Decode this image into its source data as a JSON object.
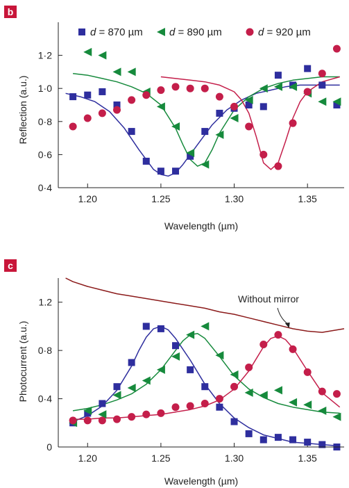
{
  "colors": {
    "d870": "#2e2e9e",
    "d890": "#168a3c",
    "d920": "#c41e4a",
    "no_mirror": "#8b1a1a",
    "panel_badge": "#c8163a"
  },
  "chart_data": [
    {
      "panel": "b",
      "type": "scatter",
      "xlabel": "Wavelength (µm)",
      "ylabel": "Reflection (a.u.)",
      "xlim": [
        1.18,
        1.375
      ],
      "ylim": [
        0.4,
        1.4
      ],
      "x_ticks": [
        1.2,
        1.25,
        1.3,
        1.35
      ],
      "x_tick_labels": [
        "1.20",
        "1.25",
        "1.30",
        "1.35"
      ],
      "y_ticks": [
        0.4,
        0.6,
        0.8,
        1.0,
        1.2
      ],
      "y_tick_labels": [
        "0·4",
        "0·6",
        "0·8",
        "1·0",
        "1·2"
      ],
      "legend_position": "top",
      "series": [
        {
          "name_prefix": "d",
          "name_value": " = 870 µm",
          "color_key": "d870",
          "marker": "square",
          "x": [
            1.19,
            1.2,
            1.21,
            1.22,
            1.23,
            1.24,
            1.25,
            1.26,
            1.27,
            1.28,
            1.29,
            1.3,
            1.31,
            1.32,
            1.33,
            1.34,
            1.35,
            1.36,
            1.37
          ],
          "y": [
            0.95,
            0.96,
            0.98,
            0.9,
            0.74,
            0.56,
            0.5,
            0.5,
            0.59,
            0.74,
            0.85,
            0.88,
            0.9,
            0.89,
            1.08,
            1.02,
            1.12,
            1.02,
            0.9
          ],
          "fit_x": [
            1.185,
            1.195,
            1.205,
            1.215,
            1.225,
            1.235,
            1.245,
            1.25,
            1.255,
            1.26,
            1.265,
            1.275,
            1.285,
            1.295,
            1.305,
            1.315,
            1.325,
            1.335,
            1.345,
            1.355,
            1.365,
            1.372
          ],
          "fit_y": [
            0.97,
            0.95,
            0.92,
            0.86,
            0.76,
            0.63,
            0.51,
            0.48,
            0.47,
            0.49,
            0.54,
            0.66,
            0.78,
            0.87,
            0.93,
            0.97,
            0.99,
            1.01,
            1.02,
            1.02,
            1.02,
            1.02
          ]
        },
        {
          "name_prefix": "d",
          "name_value": " = 890 µm",
          "color_key": "d890",
          "marker": "triangle-left",
          "x": [
            1.2,
            1.21,
            1.22,
            1.23,
            1.24,
            1.25,
            1.26,
            1.27,
            1.28,
            1.29,
            1.3,
            1.31,
            1.32,
            1.33,
            1.34,
            1.35,
            1.36,
            1.37
          ],
          "y": [
            1.22,
            1.2,
            1.1,
            1.1,
            0.98,
            0.89,
            0.77,
            0.61,
            0.54,
            0.72,
            0.82,
            0.93,
            1.0,
            1.01,
            1.01,
            0.97,
            0.92,
            0.92
          ],
          "fit_x": [
            1.19,
            1.2,
            1.21,
            1.22,
            1.23,
            1.24,
            1.25,
            1.26,
            1.265,
            1.27,
            1.275,
            1.28,
            1.285,
            1.29,
            1.3,
            1.31,
            1.32,
            1.33,
            1.34,
            1.35,
            1.36,
            1.372
          ],
          "fit_y": [
            1.09,
            1.08,
            1.06,
            1.04,
            1.01,
            0.97,
            0.9,
            0.76,
            0.66,
            0.57,
            0.53,
            0.55,
            0.63,
            0.73,
            0.87,
            0.95,
            1.0,
            1.03,
            1.05,
            1.06,
            1.07,
            1.07
          ]
        },
        {
          "name_prefix": "d",
          "name_value": " = 920 µm",
          "color_key": "d920",
          "marker": "circle",
          "x": [
            1.19,
            1.2,
            1.21,
            1.22,
            1.23,
            1.24,
            1.25,
            1.26,
            1.27,
            1.28,
            1.29,
            1.3,
            1.31,
            1.32,
            1.33,
            1.34,
            1.35,
            1.36,
            1.37
          ],
          "y": [
            0.77,
            0.82,
            0.85,
            0.87,
            0.93,
            0.96,
            0.99,
            1.01,
            1.0,
            1.0,
            0.95,
            0.89,
            0.77,
            0.6,
            0.53,
            0.79,
            0.98,
            1.09,
            1.24
          ],
          "fit_x": [
            1.25,
            1.26,
            1.27,
            1.28,
            1.29,
            1.3,
            1.305,
            1.31,
            1.315,
            1.32,
            1.325,
            1.33,
            1.335,
            1.34,
            1.345,
            1.35,
            1.36,
            1.372
          ],
          "fit_y": [
            1.07,
            1.06,
            1.05,
            1.04,
            1.02,
            0.98,
            0.93,
            0.85,
            0.71,
            0.55,
            0.51,
            0.55,
            0.68,
            0.82,
            0.92,
            0.98,
            1.04,
            1.07
          ]
        }
      ]
    },
    {
      "panel": "c",
      "type": "scatter",
      "xlabel": "Wavelength (µm)",
      "ylabel": "Photocurrent (a.u.)",
      "xlim": [
        1.18,
        1.375
      ],
      "ylim": [
        0,
        1.4
      ],
      "x_ticks": [
        1.2,
        1.25,
        1.3,
        1.35
      ],
      "x_tick_labels": [
        "1.20",
        "1.25",
        "1.30",
        "1.35"
      ],
      "y_ticks": [
        0,
        0.4,
        0.8,
        1.2
      ],
      "y_tick_labels": [
        "0",
        "0·4",
        "0·8",
        "1.2"
      ],
      "annotation": {
        "text": "Without mirror",
        "arrow_to": [
          1.337,
          0.98
        ]
      },
      "series": [
        {
          "color_key": "d870",
          "marker": "square",
          "x": [
            1.19,
            1.2,
            1.21,
            1.22,
            1.23,
            1.24,
            1.25,
            1.26,
            1.27,
            1.28,
            1.29,
            1.3,
            1.31,
            1.32,
            1.33,
            1.34,
            1.35,
            1.36,
            1.37
          ],
          "y": [
            0.2,
            0.28,
            0.36,
            0.5,
            0.7,
            1.0,
            0.98,
            0.84,
            0.64,
            0.5,
            0.33,
            0.21,
            0.11,
            0.06,
            0.08,
            0.06,
            0.04,
            0.02,
            0.0
          ],
          "fit_x": [
            1.19,
            1.2,
            1.21,
            1.22,
            1.23,
            1.235,
            1.24,
            1.245,
            1.25,
            1.255,
            1.26,
            1.27,
            1.28,
            1.29,
            1.3,
            1.31,
            1.32,
            1.33,
            1.34,
            1.35,
            1.36,
            1.37
          ],
          "fit_y": [
            0.21,
            0.26,
            0.34,
            0.47,
            0.67,
            0.8,
            0.91,
            0.98,
            1.0,
            0.97,
            0.9,
            0.72,
            0.52,
            0.36,
            0.24,
            0.16,
            0.1,
            0.07,
            0.04,
            0.03,
            0.02,
            0.01
          ]
        },
        {
          "color_key": "d890",
          "marker": "triangle-left",
          "x": [
            1.19,
            1.2,
            1.21,
            1.22,
            1.23,
            1.24,
            1.25,
            1.26,
            1.27,
            1.28,
            1.29,
            1.3,
            1.31,
            1.32,
            1.33,
            1.34,
            1.35,
            1.36,
            1.37
          ],
          "y": [
            0.2,
            0.3,
            0.27,
            0.43,
            0.49,
            0.55,
            0.64,
            0.75,
            0.93,
            1.0,
            0.76,
            0.6,
            0.45,
            0.43,
            0.47,
            0.37,
            0.35,
            0.3,
            0.25
          ],
          "fit_x": [
            1.19,
            1.2,
            1.21,
            1.22,
            1.23,
            1.24,
            1.25,
            1.26,
            1.265,
            1.27,
            1.275,
            1.28,
            1.29,
            1.3,
            1.31,
            1.32,
            1.33,
            1.34,
            1.35,
            1.36,
            1.372
          ],
          "fit_y": [
            0.3,
            0.32,
            0.35,
            0.39,
            0.44,
            0.52,
            0.64,
            0.8,
            0.88,
            0.93,
            0.94,
            0.9,
            0.75,
            0.59,
            0.48,
            0.41,
            0.36,
            0.33,
            0.31,
            0.29,
            0.28
          ]
        },
        {
          "color_key": "d920",
          "marker": "circle",
          "x": [
            1.19,
            1.2,
            1.21,
            1.22,
            1.23,
            1.24,
            1.25,
            1.26,
            1.27,
            1.28,
            1.29,
            1.3,
            1.31,
            1.32,
            1.33,
            1.34,
            1.35,
            1.36,
            1.37
          ],
          "y": [
            0.22,
            0.22,
            0.22,
            0.23,
            0.25,
            0.27,
            0.28,
            0.33,
            0.34,
            0.36,
            0.4,
            0.5,
            0.66,
            0.85,
            0.93,
            0.81,
            0.62,
            0.46,
            0.44
          ],
          "fit_x": [
            1.19,
            1.2,
            1.21,
            1.22,
            1.23,
            1.24,
            1.25,
            1.26,
            1.27,
            1.28,
            1.29,
            1.3,
            1.31,
            1.315,
            1.32,
            1.325,
            1.33,
            1.335,
            1.34,
            1.35,
            1.36,
            1.372
          ],
          "fit_y": [
            0.23,
            0.23,
            0.24,
            0.24,
            0.25,
            0.26,
            0.27,
            0.29,
            0.31,
            0.34,
            0.39,
            0.48,
            0.63,
            0.73,
            0.83,
            0.9,
            0.92,
            0.89,
            0.82,
            0.63,
            0.45,
            0.33
          ]
        },
        {
          "name": "Without mirror",
          "color_key": "no_mirror",
          "marker": "none",
          "fit_x": [
            1.185,
            1.19,
            1.2,
            1.21,
            1.22,
            1.23,
            1.24,
            1.25,
            1.26,
            1.27,
            1.28,
            1.29,
            1.3,
            1.31,
            1.32,
            1.33,
            1.34,
            1.35,
            1.36,
            1.37,
            1.375
          ],
          "fit_y": [
            1.4,
            1.37,
            1.33,
            1.3,
            1.27,
            1.25,
            1.23,
            1.21,
            1.19,
            1.17,
            1.15,
            1.12,
            1.1,
            1.07,
            1.04,
            1.01,
            0.98,
            0.96,
            0.95,
            0.97,
            0.98
          ]
        }
      ]
    }
  ]
}
